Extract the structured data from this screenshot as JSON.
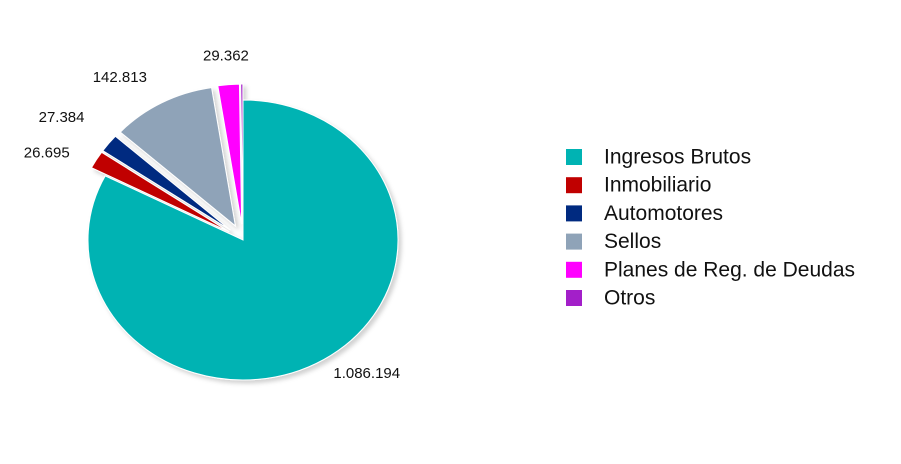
{
  "chart_data": {
    "type": "pie",
    "categories": [
      "Ingresos Brutos",
      "Inmobiliario",
      "Automotores",
      "Sellos",
      "Planes de Reg. de Deudas",
      "Otros"
    ],
    "values": [
      1086194,
      26695,
      27384,
      142813,
      29362,
      3000
    ],
    "value_labels": [
      "1.086.194",
      "26.695",
      "27.384",
      "142.813",
      "29.362",
      null
    ],
    "colors": [
      "#00b3b3",
      "#c00000",
      "#002a80",
      "#8fa3b8",
      "#ff00ff",
      "#a31fc9"
    ],
    "legend": "right"
  }
}
